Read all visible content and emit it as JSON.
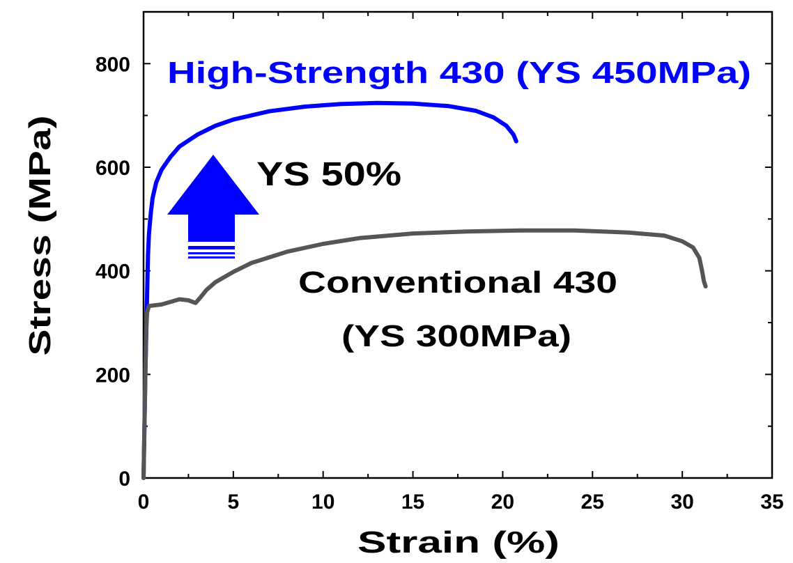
{
  "chart_data": {
    "type": "line",
    "xlabel": "Strain (%)",
    "ylabel": "Stress (MPa)",
    "xlim": [
      0,
      35
    ],
    "ylim": [
      0,
      900
    ],
    "x_ticks": [
      0,
      5,
      10,
      15,
      20,
      25,
      30,
      35
    ],
    "y_ticks": [
      0,
      200,
      400,
      600,
      800
    ],
    "grid": false,
    "legend": "none",
    "series": [
      {
        "name": "High-Strength 430 (YS 450MPa)",
        "color": "#0000ff",
        "x": [
          0.0,
          0.1,
          0.2,
          0.25,
          0.3,
          0.4,
          0.5,
          0.7,
          1.0,
          1.5,
          2.0,
          3.0,
          4.0,
          5.0,
          7.0,
          9.0,
          11.0,
          13.0,
          15.0,
          17.0,
          18.5,
          19.5,
          20.2,
          20.6,
          20.75
        ],
        "y": [
          0,
          200,
          360,
          430,
          470,
          510,
          540,
          570,
          595,
          620,
          640,
          663,
          680,
          692,
          708,
          717,
          722,
          724,
          723,
          718,
          709,
          696,
          680,
          663,
          650
        ]
      },
      {
        "name": "Conventional 430 (YS 300MPa)",
        "color": "#555555",
        "x": [
          0.0,
          0.1,
          0.15,
          0.2,
          0.3,
          0.5,
          1.0,
          1.5,
          2.0,
          2.5,
          2.9,
          3.2,
          3.5,
          4.0,
          5.0,
          6.0,
          8.0,
          10.0,
          12.0,
          15.0,
          18.0,
          21.0,
          24.0,
          27.0,
          29.0,
          30.0,
          30.6,
          30.95,
          31.1,
          31.2,
          31.3
        ],
        "y": [
          0,
          200,
          290,
          320,
          332,
          333,
          335,
          340,
          345,
          343,
          338,
          350,
          363,
          378,
          398,
          415,
          437,
          452,
          463,
          472,
          476,
          478,
          478,
          474,
          468,
          457,
          445,
          425,
          400,
          380,
          370
        ]
      }
    ],
    "annotations": [
      {
        "id": "blue-label",
        "text": "High-Strength 430 (YS 450MPa)",
        "color": "#0000ff"
      },
      {
        "id": "increase-label",
        "text": "YS 50%",
        "color": "#000000"
      },
      {
        "id": "gray-label-1",
        "text": "Conventional 430",
        "color": "#000000"
      },
      {
        "id": "gray-label-2",
        "text": "(YS 300MPa)",
        "color": "#000000"
      }
    ]
  }
}
